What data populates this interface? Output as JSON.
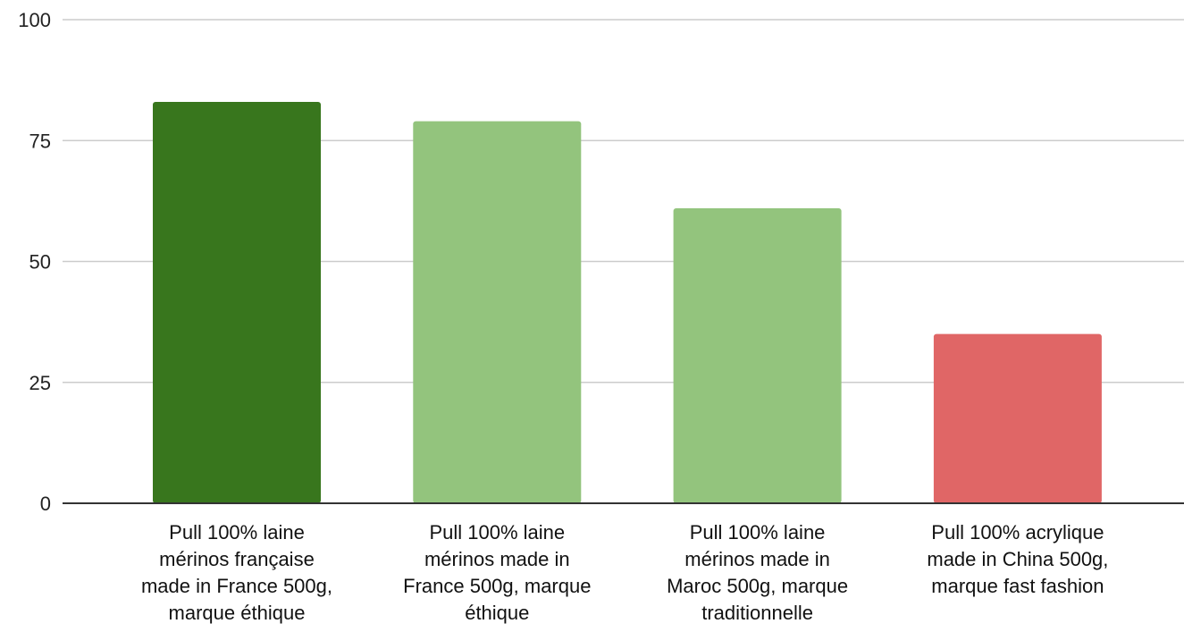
{
  "chart_data": {
    "type": "bar",
    "title": "",
    "xlabel": "",
    "ylabel": "",
    "ylim": [
      0,
      100
    ],
    "yticks": [
      0,
      25,
      50,
      75,
      100
    ],
    "grid": true,
    "legend": "none",
    "categories": [
      [
        "Pull 100% laine",
        "mérinos française",
        "made in France 500g,",
        "marque éthique"
      ],
      [
        "Pull 100% laine",
        "mérinos made in",
        "France 500g, marque",
        "éthique"
      ],
      [
        "Pull 100% laine",
        "mérinos made in",
        "Maroc 500g, marque",
        "traditionnelle"
      ],
      [
        "Pull 100% acrylique",
        "made in China 500g,",
        "marque fast fashion"
      ]
    ],
    "values": [
      83,
      79,
      61,
      35
    ],
    "colors": [
      "#38761d",
      "#93c47d",
      "#93c47d",
      "#e06666"
    ]
  }
}
